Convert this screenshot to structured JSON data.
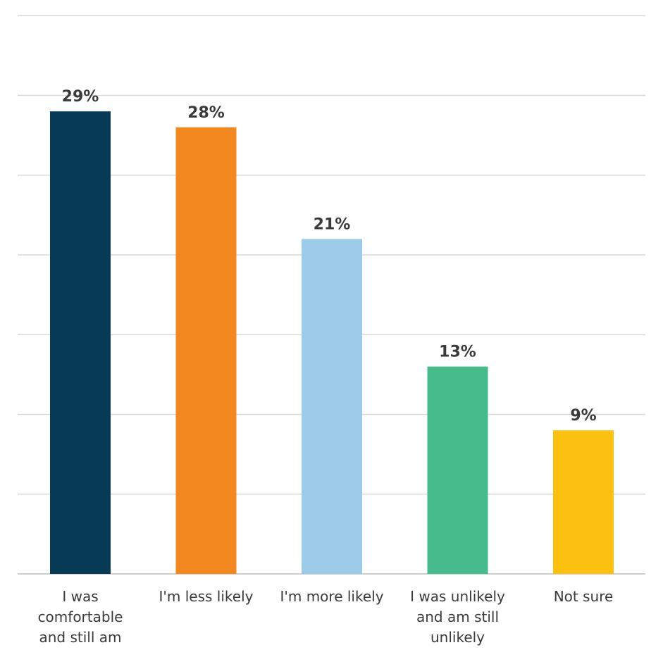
{
  "chart_data": {
    "type": "bar",
    "title": "",
    "xlabel": "",
    "ylabel": "",
    "ylim": [
      0,
      35
    ],
    "grid": true,
    "categories": [
      [
        "I was",
        "comfortable",
        "and still am"
      ],
      [
        "I'm less likely"
      ],
      [
        "I'm more likely"
      ],
      [
        "I was unlikely",
        "and am still",
        "unlikely"
      ],
      [
        "Not sure"
      ]
    ],
    "values": [
      29,
      28,
      21,
      13,
      9
    ],
    "value_labels": [
      "29%",
      "28%",
      "21%",
      "13%",
      "9%"
    ],
    "colors": [
      "#073a55",
      "#f38720",
      "#9ccbea",
      "#47bb8b",
      "#fcc110"
    ]
  }
}
